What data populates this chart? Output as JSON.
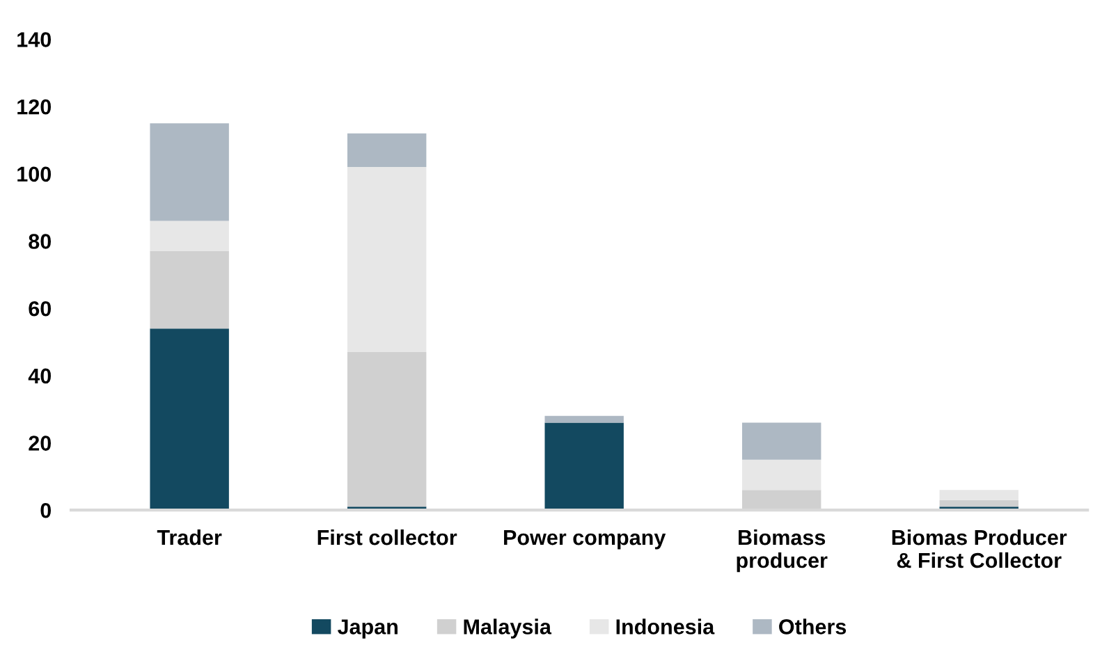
{
  "chart_data": {
    "type": "bar",
    "stacked": true,
    "categories": [
      "Trader",
      "First collector",
      "Power company",
      "Biomass\nproducer",
      "Biomas Producer\n& First Collector"
    ],
    "series": [
      {
        "name": "Japan",
        "color": "#134960",
        "values": [
          54,
          1,
          26,
          0,
          1
        ]
      },
      {
        "name": "Malaysia",
        "color": "#d0d0d0",
        "values": [
          23,
          46,
          0,
          6,
          2
        ]
      },
      {
        "name": "Indonesia",
        "color": "#e7e7e7",
        "values": [
          9,
          55,
          0,
          9,
          3
        ]
      },
      {
        "name": "Others",
        "color": "#adb8c3",
        "values": [
          29,
          10,
          2,
          11,
          0
        ]
      }
    ],
    "ylim": [
      0,
      140
    ],
    "yticks": [
      0,
      20,
      40,
      60,
      80,
      100,
      120,
      140
    ],
    "grid": false,
    "legend": "bottom"
  }
}
